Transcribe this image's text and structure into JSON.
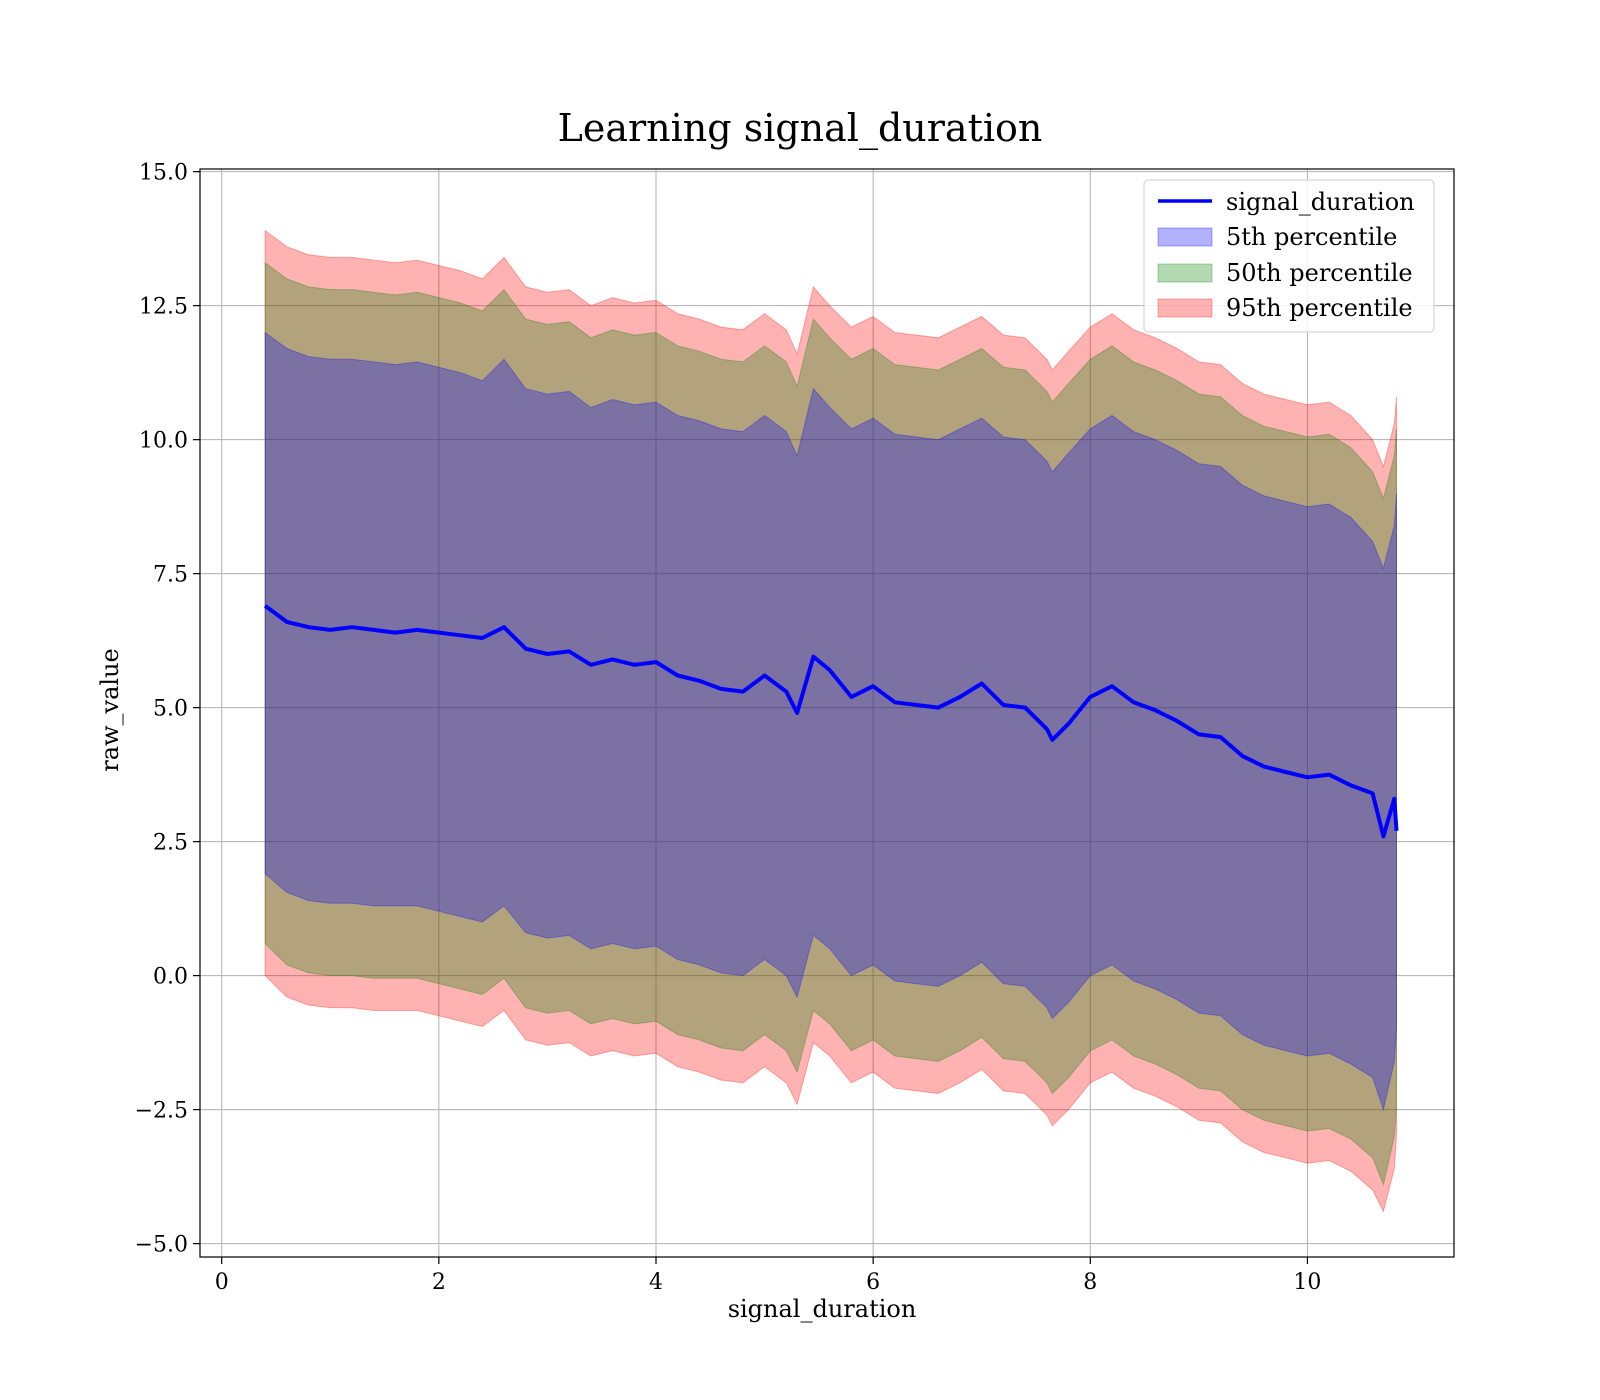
{
  "chart_data": {
    "type": "area",
    "title": "Learning signal_duration",
    "xlabel": "signal_duration",
    "ylabel": "raw_value",
    "xlim": [
      -0.2,
      11.35
    ],
    "ylim": [
      -5.25,
      15.05
    ],
    "xticks": [
      0,
      2,
      4,
      6,
      8,
      10
    ],
    "xtick_labels": [
      "0",
      "2",
      "4",
      "6",
      "8",
      "10"
    ],
    "yticks": [
      -5.0,
      -2.5,
      0.0,
      2.5,
      5.0,
      7.5,
      10.0,
      12.5,
      15.0
    ],
    "ytick_labels": [
      "−5.0",
      "−2.5",
      "0.0",
      "2.5",
      "5.0",
      "7.5",
      "10.0",
      "12.5",
      "15.0"
    ],
    "grid": true,
    "legend_position": "top-right",
    "x": [
      0.4,
      0.6,
      0.8,
      1.0,
      1.2,
      1.4,
      1.6,
      1.8,
      2.0,
      2.2,
      2.4,
      2.6,
      2.8,
      3.0,
      3.2,
      3.4,
      3.6,
      3.8,
      4.0,
      4.2,
      4.4,
      4.6,
      4.8,
      5.0,
      5.2,
      5.3,
      5.45,
      5.6,
      5.8,
      6.0,
      6.2,
      6.4,
      6.6,
      6.8,
      7.0,
      7.2,
      7.4,
      7.6,
      7.65,
      7.8,
      8.0,
      8.2,
      8.4,
      8.6,
      8.8,
      9.0,
      9.2,
      9.4,
      9.6,
      9.8,
      10.0,
      10.2,
      10.4,
      10.6,
      10.7,
      10.8,
      10.82
    ],
    "series": [
      {
        "name": "signal_duration",
        "kind": "line",
        "color": "#0000ff",
        "values": [
          6.9,
          6.6,
          6.5,
          6.45,
          6.5,
          6.45,
          6.4,
          6.45,
          6.4,
          6.35,
          6.3,
          6.5,
          6.1,
          6.0,
          6.05,
          5.8,
          5.9,
          5.8,
          5.85,
          5.6,
          5.5,
          5.35,
          5.3,
          5.6,
          5.3,
          4.9,
          5.95,
          5.7,
          5.2,
          5.4,
          5.1,
          5.05,
          5.0,
          5.2,
          5.45,
          5.05,
          5.0,
          4.6,
          4.4,
          4.7,
          5.2,
          5.4,
          5.1,
          4.95,
          4.75,
          4.5,
          4.45,
          4.1,
          3.9,
          3.8,
          3.7,
          3.75,
          3.55,
          3.4,
          2.6,
          3.3,
          2.7
        ]
      },
      {
        "name": "5th percentile",
        "kind": "band",
        "color": "#0000ff",
        "lower": [
          1.9,
          1.55,
          1.4,
          1.35,
          1.35,
          1.3,
          1.3,
          1.3,
          1.2,
          1.1,
          1.0,
          1.3,
          0.8,
          0.7,
          0.75,
          0.5,
          0.6,
          0.5,
          0.55,
          0.3,
          0.2,
          0.05,
          0.0,
          0.3,
          0.0,
          -0.4,
          0.75,
          0.5,
          0.0,
          0.2,
          -0.1,
          -0.15,
          -0.2,
          0.0,
          0.25,
          -0.15,
          -0.2,
          -0.6,
          -0.8,
          -0.5,
          0.0,
          0.2,
          -0.1,
          -0.25,
          -0.45,
          -0.7,
          -0.75,
          -1.1,
          -1.3,
          -1.4,
          -1.5,
          -1.45,
          -1.65,
          -1.9,
          -2.5,
          -1.6,
          -1.0
        ],
        "upper": [
          12.0,
          11.7,
          11.55,
          11.5,
          11.5,
          11.45,
          11.4,
          11.45,
          11.35,
          11.25,
          11.1,
          11.5,
          10.95,
          10.85,
          10.9,
          10.6,
          10.75,
          10.65,
          10.7,
          10.45,
          10.35,
          10.2,
          10.15,
          10.45,
          10.15,
          9.7,
          10.95,
          10.6,
          10.2,
          10.4,
          10.1,
          10.05,
          10.0,
          10.2,
          10.4,
          10.05,
          10.0,
          9.6,
          9.4,
          9.75,
          10.2,
          10.45,
          10.15,
          10.0,
          9.8,
          9.55,
          9.5,
          9.15,
          8.95,
          8.85,
          8.75,
          8.8,
          8.55,
          8.1,
          7.6,
          8.4,
          9.0
        ]
      },
      {
        "name": "50th percentile",
        "kind": "band",
        "color": "#008000",
        "lower": [
          0.6,
          0.2,
          0.05,
          0.0,
          0.0,
          -0.05,
          -0.05,
          -0.05,
          -0.15,
          -0.25,
          -0.35,
          -0.05,
          -0.6,
          -0.7,
          -0.65,
          -0.9,
          -0.8,
          -0.9,
          -0.85,
          -1.1,
          -1.2,
          -1.35,
          -1.4,
          -1.1,
          -1.4,
          -1.8,
          -0.65,
          -0.9,
          -1.4,
          -1.2,
          -1.5,
          -1.55,
          -1.6,
          -1.4,
          -1.15,
          -1.55,
          -1.6,
          -2.0,
          -2.2,
          -1.9,
          -1.4,
          -1.2,
          -1.5,
          -1.65,
          -1.85,
          -2.1,
          -2.15,
          -2.5,
          -2.7,
          -2.8,
          -2.9,
          -2.85,
          -3.05,
          -3.4,
          -3.9,
          -3.0,
          -2.5
        ],
        "upper": [
          13.3,
          13.0,
          12.85,
          12.8,
          12.8,
          12.75,
          12.7,
          12.75,
          12.65,
          12.55,
          12.4,
          12.8,
          12.25,
          12.15,
          12.2,
          11.9,
          12.05,
          11.95,
          12.0,
          11.75,
          11.65,
          11.5,
          11.45,
          11.75,
          11.45,
          11.0,
          12.25,
          11.9,
          11.5,
          11.7,
          11.4,
          11.35,
          11.3,
          11.5,
          11.7,
          11.35,
          11.3,
          10.9,
          10.7,
          11.05,
          11.5,
          11.75,
          11.45,
          11.3,
          11.1,
          10.85,
          10.8,
          10.45,
          10.25,
          10.15,
          10.05,
          10.1,
          9.85,
          9.4,
          8.9,
          9.7,
          10.2
        ]
      },
      {
        "name": "95th percentile",
        "kind": "band",
        "color": "#ff0000",
        "lower": [
          0.0,
          -0.4,
          -0.55,
          -0.6,
          -0.6,
          -0.65,
          -0.65,
          -0.65,
          -0.75,
          -0.85,
          -0.95,
          -0.65,
          -1.2,
          -1.3,
          -1.25,
          -1.5,
          -1.4,
          -1.5,
          -1.45,
          -1.7,
          -1.8,
          -1.95,
          -2.0,
          -1.7,
          -2.0,
          -2.4,
          -1.25,
          -1.5,
          -2.0,
          -1.8,
          -2.1,
          -2.15,
          -2.2,
          -2.0,
          -1.75,
          -2.15,
          -2.2,
          -2.6,
          -2.8,
          -2.5,
          -2.0,
          -1.8,
          -2.1,
          -2.25,
          -2.45,
          -2.7,
          -2.75,
          -3.1,
          -3.3,
          -3.4,
          -3.5,
          -3.45,
          -3.65,
          -4.0,
          -4.4,
          -3.6,
          -3.0
        ],
        "upper": [
          13.9,
          13.6,
          13.45,
          13.4,
          13.4,
          13.35,
          13.3,
          13.35,
          13.25,
          13.15,
          13.0,
          13.4,
          12.85,
          12.75,
          12.8,
          12.5,
          12.65,
          12.55,
          12.6,
          12.35,
          12.25,
          12.1,
          12.05,
          12.35,
          12.05,
          11.6,
          12.85,
          12.5,
          12.1,
          12.3,
          12.0,
          11.95,
          11.9,
          12.1,
          12.3,
          11.95,
          11.9,
          11.5,
          11.3,
          11.65,
          12.1,
          12.35,
          12.05,
          11.9,
          11.7,
          11.45,
          11.4,
          11.05,
          10.85,
          10.75,
          10.65,
          10.7,
          10.45,
          10.0,
          9.5,
          10.3,
          10.8
        ]
      }
    ]
  }
}
